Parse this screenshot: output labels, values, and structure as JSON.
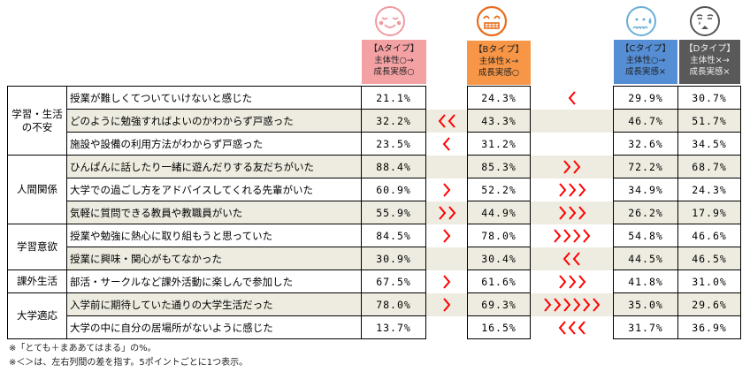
{
  "types": [
    {
      "key": "A",
      "label": "【Aタイプ】",
      "line1": "主体性○→",
      "line2": "成長実感○",
      "color": "#F4A1A4",
      "face_color": "#F09AA0",
      "face": "relieved-face"
    },
    {
      "key": "B",
      "label": "【Bタイプ】",
      "line1": "主体性×→",
      "line2": "成長実感○",
      "color": "#F79646",
      "face_color": "#E86C1A",
      "face": "grimacing-face"
    },
    {
      "key": "C",
      "label": "【Cタイプ】",
      "line1": "主体性○→",
      "line2": "成長実感×",
      "color": "#558ED5",
      "face_color": "#6AAFD6",
      "face": "anxious-sweat-face"
    },
    {
      "key": "D",
      "label": "【Dタイプ】",
      "line1": "主体性×→",
      "line2": "成長実感×",
      "color": "#595959",
      "face_color": "#555555",
      "face": "sad-face"
    }
  ],
  "categories": [
    {
      "name": "学習・生活\nの不安",
      "rows": 3
    },
    {
      "name": "人間関係",
      "rows": 3
    },
    {
      "name": "学習意欲",
      "rows": 2
    },
    {
      "name": "課外生活",
      "rows": 1
    },
    {
      "name": "大学適応",
      "rows": 2
    }
  ],
  "rows": [
    {
      "q": "授業が難しくてついていけないと感じた",
      "A": "21.1%",
      "B": "24.3%",
      "C": "29.9%",
      "D": "30.7%",
      "ab": "",
      "bc": "<"
    },
    {
      "q": "どのように勉強すればよいのかわからず戸惑った",
      "A": "32.2%",
      "B": "43.3%",
      "C": "46.7%",
      "D": "51.7%",
      "ab": "<<",
      "bc": ""
    },
    {
      "q": "施設や設備の利用方法がわからず戸惑った",
      "A": "23.5%",
      "B": "31.2%",
      "C": "32.6%",
      "D": "34.5%",
      "ab": "<",
      "bc": ""
    },
    {
      "q": "ひんぱんに話したり一緒に遊んだりする友だちがいた",
      "A": "88.4%",
      "B": "85.3%",
      "C": "72.2%",
      "D": "68.7%",
      "ab": "",
      "bc": ">>"
    },
    {
      "q": "大学での過ごし方をアドバイスしてくれる先輩がいた",
      "A": "60.9%",
      "B": "52.2%",
      "C": "34.9%",
      "D": "24.3%",
      "ab": ">",
      "bc": ">>>"
    },
    {
      "q": "気軽に質問できる教員や教職員がいた",
      "A": "55.9%",
      "B": "44.9%",
      "C": "26.2%",
      "D": "17.9%",
      "ab": ">>",
      "bc": ">>>"
    },
    {
      "q": "授業や勉強に熱心に取り組もうと思っていた",
      "A": "84.5%",
      "B": "78.0%",
      "C": "54.8%",
      "D": "46.6%",
      "ab": ">",
      "bc": ">>>>"
    },
    {
      "q": "授業に興味・関心がもてなかった",
      "A": "30.9%",
      "B": "30.4%",
      "C": "44.5%",
      "D": "46.5%",
      "ab": "",
      "bc": "<<"
    },
    {
      "q": "部活・サークルなど課外活動に楽しんで参加した",
      "A": "67.5%",
      "B": "61.6%",
      "C": "41.8%",
      "D": "31.0%",
      "ab": ">",
      "bc": ">>>"
    },
    {
      "q": "入学前に期待していた通りの大学生活だった",
      "A": "78.0%",
      "B": "69.3%",
      "C": "35.0%",
      "D": "29.6%",
      "ab": ">",
      "bc": ">>>>>>"
    },
    {
      "q": "大学の中に自分の居場所がないように感じた",
      "A": "13.7%",
      "B": "16.5%",
      "C": "31.7%",
      "D": "36.9%",
      "ab": "",
      "bc": "<<<"
    }
  ],
  "colors": {
    "shade": "#EEECE1",
    "arrow": "#FF0000"
  },
  "notes": [
    "※「とても＋まああてはまる」の%。",
    "※＜＞は、左右列間の差を指す。5ポイントごとに1つ表示。"
  ]
}
